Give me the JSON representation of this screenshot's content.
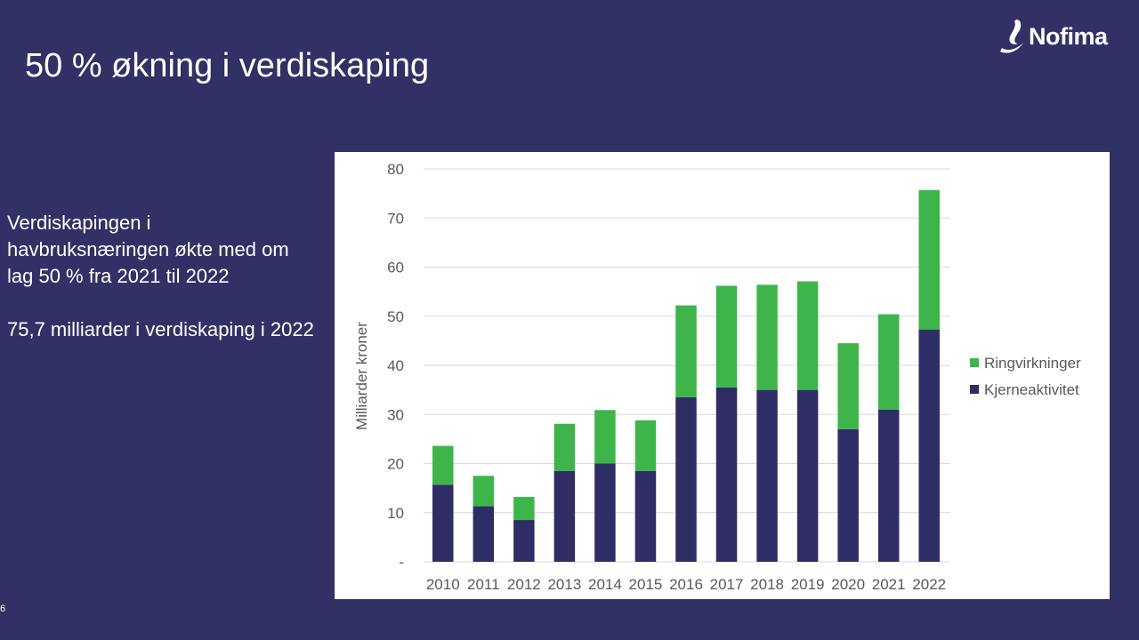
{
  "slide": {
    "title": "50 % økning i verdiskaping",
    "paragraph1": "Verdiskapingen i havbruksnæringen økte med om lag 50 % fra 2021 til 2022",
    "paragraph2": "75,7 milliarder i verdiskaping i 2022",
    "page_number": "6"
  },
  "logo": {
    "text": "Nofima",
    "icon": "nofima-swoosh-icon"
  },
  "colors": {
    "background": "#313166",
    "core": "#2e2d66",
    "ripple": "#3db54a",
    "grid": "#d9d9d9",
    "tick_text": "#595959"
  },
  "chart_data": {
    "type": "bar",
    "stacked": true,
    "categories": [
      "2010",
      "2011",
      "2012",
      "2013",
      "2014",
      "2015",
      "2016",
      "2017",
      "2018",
      "2019",
      "2020",
      "2021",
      "2022"
    ],
    "series": [
      {
        "name": "Kjerneaktivitet",
        "color": "#2e2d66",
        "values": [
          15.7,
          11.3,
          8.5,
          18.5,
          20.0,
          18.5,
          33.5,
          35.5,
          35.0,
          35.0,
          27.0,
          31.0,
          47.3
        ]
      },
      {
        "name": "Ringvirkninger",
        "color": "#3db54a",
        "values": [
          7.9,
          6.2,
          4.7,
          9.6,
          10.9,
          10.3,
          18.7,
          20.7,
          21.4,
          22.1,
          17.5,
          19.4,
          28.4
        ]
      }
    ],
    "ylabel": "Milliarder kroner",
    "xlabel": "",
    "ylim": [
      0,
      80
    ],
    "yticks": [
      0,
      10,
      20,
      30,
      40,
      50,
      60,
      70,
      80
    ],
    "ytick_labels": [
      "-",
      "10",
      "20",
      "30",
      "40",
      "50",
      "60",
      "70",
      "80"
    ],
    "grid": true,
    "legend_position": "right",
    "legend_order": [
      "Ringvirkninger",
      "Kjerneaktivitet"
    ]
  }
}
